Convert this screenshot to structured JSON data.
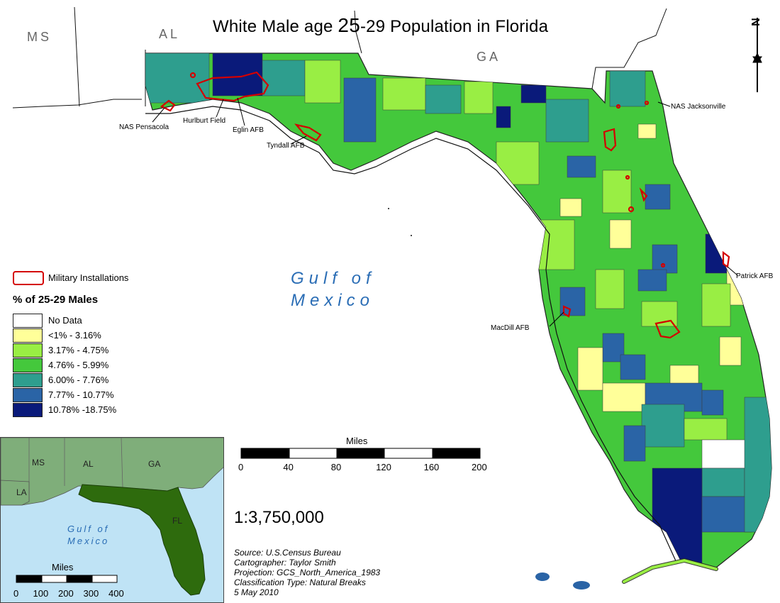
{
  "title": {
    "pre": "White Male age ",
    "num": "25",
    "post": "-29 Population in Florida"
  },
  "neighbors": {
    "ms": "MS",
    "al": "AL",
    "ga": "GA"
  },
  "water": {
    "line1": "Gulf of",
    "line2": "Mexico"
  },
  "bases": {
    "pensacola": "NAS Pensacola",
    "hurlburt": "Hurlburt Field",
    "eglin": "Eglin AFB",
    "tyndall": "Tyndall AFB",
    "jacksonville": "NAS Jacksonville",
    "patrick": "Patrick AFB",
    "macdill": "MacDill AFB"
  },
  "legend": {
    "military_label": "Military Installations",
    "military_color": "#d40000",
    "title": "% of 25-29 Males",
    "classes": [
      {
        "label": "No Data",
        "color": "#ffffff"
      },
      {
        "label": "<1% - 3.16%",
        "color": "#ffff99"
      },
      {
        "label": "3.17% - 4.75%",
        "color": "#99ee44"
      },
      {
        "label": "4.76% - 5.99%",
        "color": "#44c83c"
      },
      {
        "label": "6.00% - 7.76%",
        "color": "#2e9e8e"
      },
      {
        "label": "7.77% - 10.77%",
        "color": "#2a64a6"
      },
      {
        "label": "10.78% -18.75%",
        "color": "#0a1a7a"
      }
    ]
  },
  "scalebar": {
    "unit": "Miles",
    "ticks": [
      "0",
      "40",
      "80",
      "120",
      "160",
      "200"
    ]
  },
  "scale_ratio": "1:3,750,000",
  "credits": {
    "source": "Source:  U.S.Census Bureau",
    "cartographer": "Cartographer:  Taylor Smith",
    "projection": "Projection: GCS_North_America_1983",
    "classification": "Classification Type: Natural Breaks",
    "date": "5 May 2010"
  },
  "inset": {
    "ms": "MS",
    "al": "AL",
    "ga": "GA",
    "la": "LA",
    "fl": "FL",
    "gulf1": "Gulf of",
    "gulf2": "Mexico",
    "unit": "Miles",
    "ticks": [
      "0",
      "100",
      "200",
      "300",
      "400"
    ]
  },
  "north_arrow": "N"
}
